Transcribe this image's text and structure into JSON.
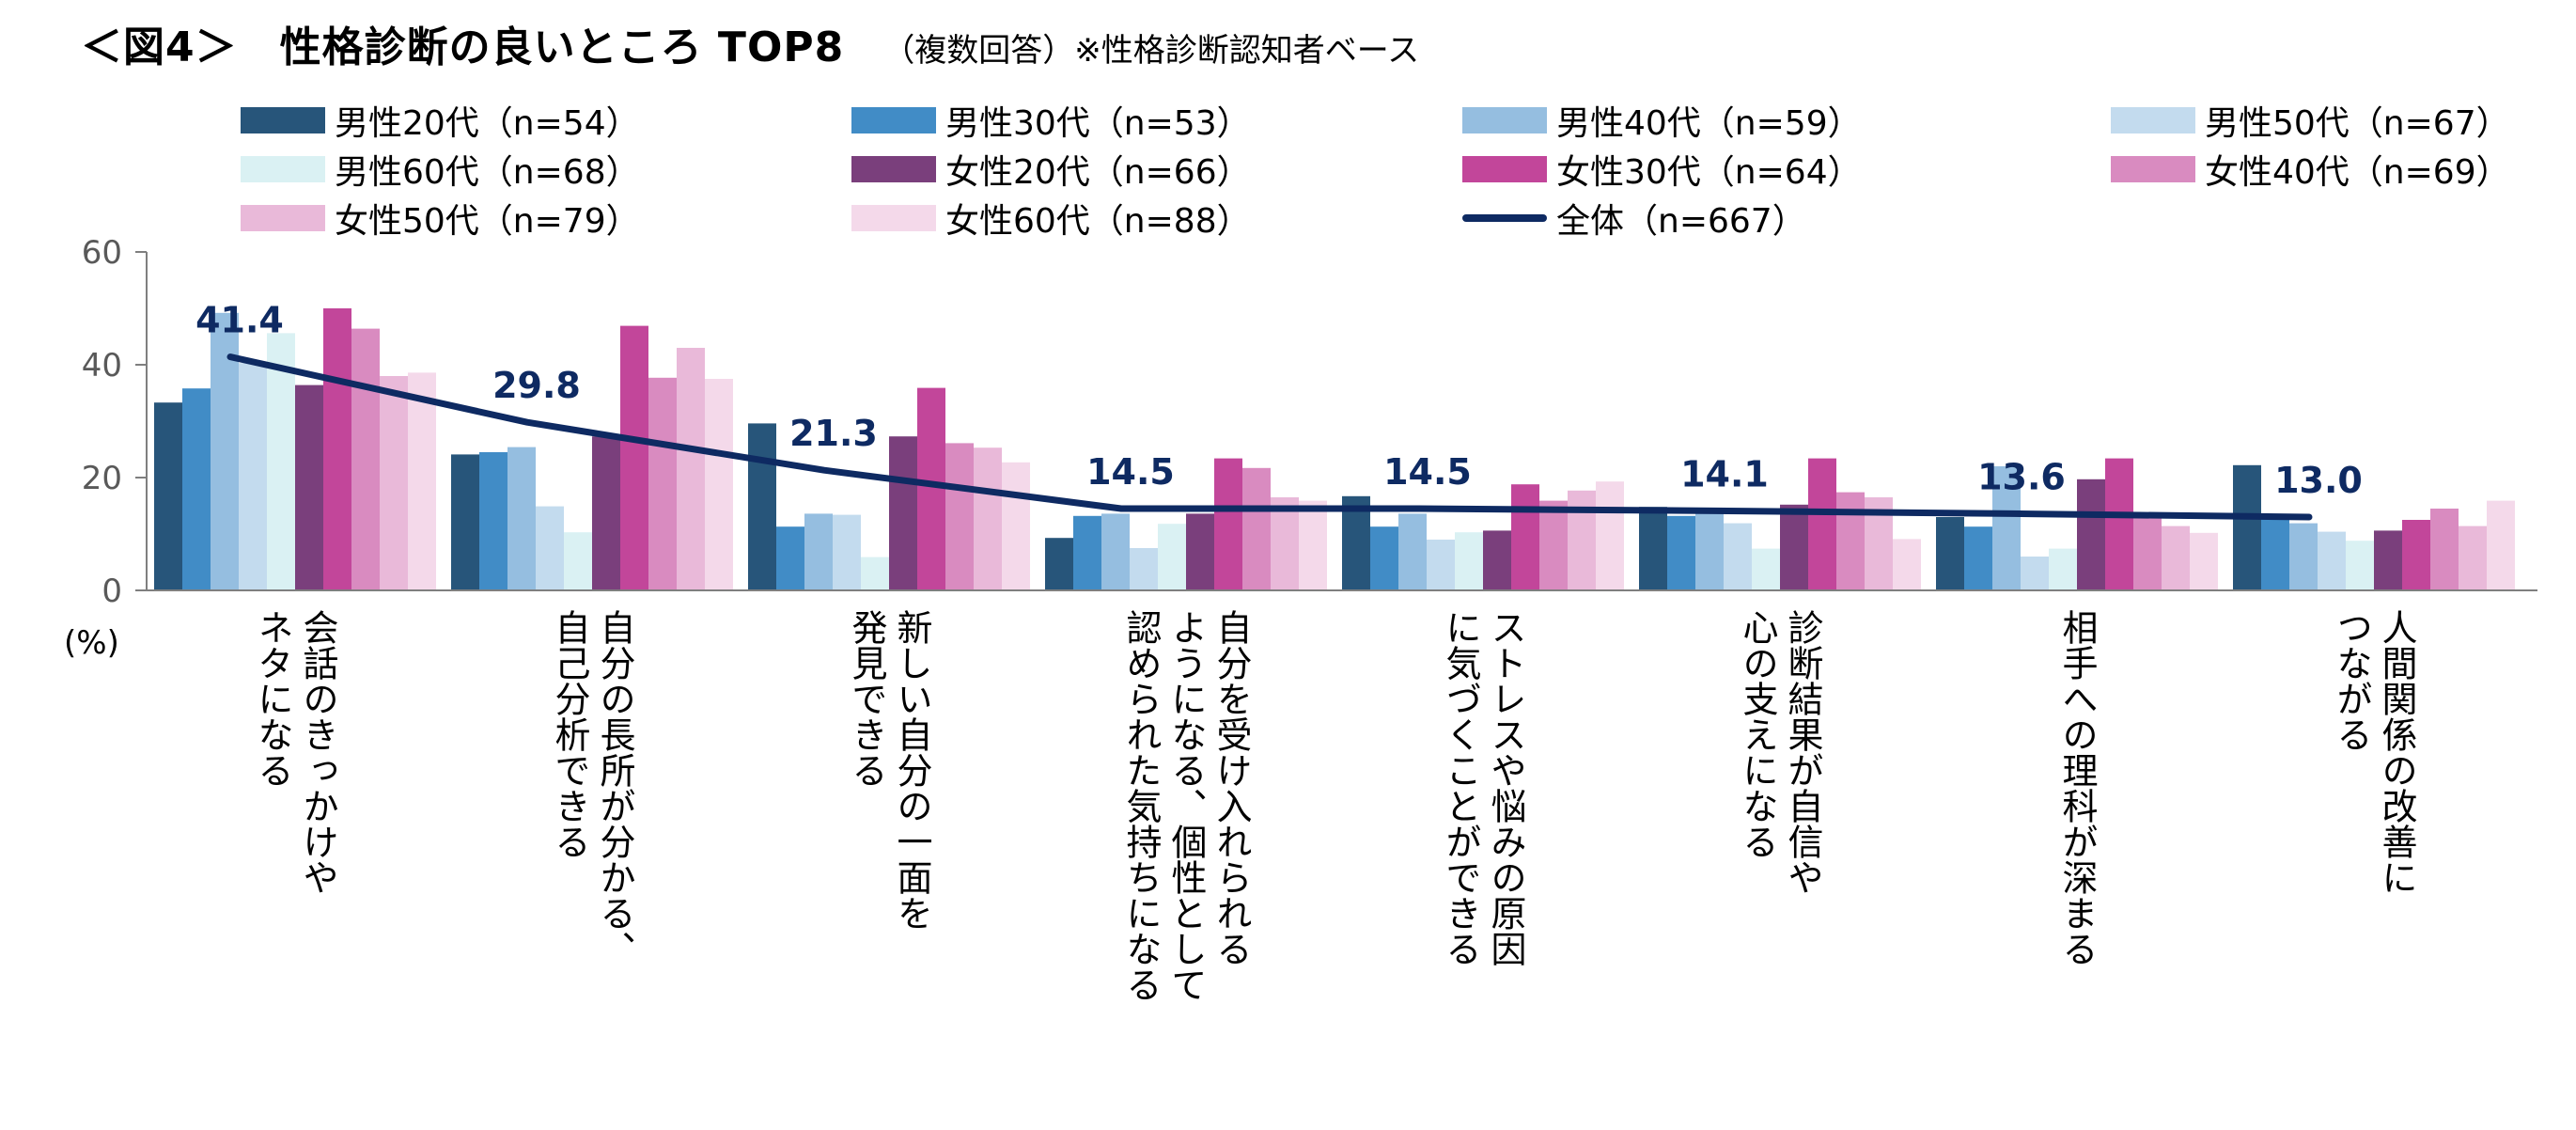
{
  "title": "＜図4＞　性格診断の良いところ TOP8",
  "subtitle": "（複数回答）※性格診断認知者ベース",
  "chart_data": {
    "type": "bar",
    "ylim": [
      0,
      60
    ],
    "yticks": [
      0,
      20,
      40,
      60
    ],
    "ylabel": "(%)",
    "grid": false,
    "legend_position": "top",
    "categories": [
      "会話のきっかけや\nネタになる",
      "自分の長所が分かる、\n自己分析できる",
      "新しい自分の一面を\n発見できる",
      "自分を受け入れられる\nようになる、個性として\n認められた気持ちになる",
      "ストレスや悩みの原因\nに気づくことができる",
      "診断結果が自信や\n心の支えになる",
      "相手への理科が深まる",
      "人間関係の改善に\nつながる"
    ],
    "series": [
      {
        "name": "男性20代（n=54）",
        "color": "#27557A",
        "values": [
          33.3,
          24.1,
          29.6,
          9.3,
          16.7,
          14.8,
          13.0,
          22.2
        ]
      },
      {
        "name": "男性30代（n=53）",
        "color": "#418CC6",
        "values": [
          35.8,
          24.5,
          11.3,
          13.2,
          11.3,
          13.2,
          11.3,
          13.2
        ]
      },
      {
        "name": "男性40代（n=59）",
        "color": "#95BEE0",
        "values": [
          49.2,
          25.4,
          13.6,
          13.6,
          13.6,
          13.6,
          22.0,
          11.9
        ]
      },
      {
        "name": "男性50代（n=67）",
        "color": "#C3DBEE",
        "values": [
          40.3,
          14.9,
          13.4,
          7.5,
          9.0,
          11.9,
          6.0,
          10.4
        ]
      },
      {
        "name": "男性60代（n=68）",
        "color": "#DAF1F3",
        "values": [
          45.6,
          10.3,
          5.9,
          11.8,
          10.3,
          7.4,
          7.4,
          8.8
        ]
      },
      {
        "name": "女性20代（n=66）",
        "color": "#7A3F7C",
        "values": [
          36.4,
          27.3,
          27.3,
          13.6,
          10.6,
          15.2,
          19.7,
          10.6
        ]
      },
      {
        "name": "女性30代（n=64）",
        "color": "#C2469A",
        "values": [
          50.0,
          46.9,
          35.9,
          23.4,
          18.8,
          23.4,
          23.4,
          12.5
        ]
      },
      {
        "name": "女性40代（n=69）",
        "color": "#D98BC0",
        "values": [
          46.4,
          37.7,
          26.1,
          21.7,
          15.9,
          17.4,
          13.0,
          14.5
        ]
      },
      {
        "name": "女性50代（n=79）",
        "color": "#E9B9D9",
        "values": [
          38.0,
          43.0,
          25.3,
          16.5,
          17.7,
          16.5,
          11.4,
          11.4
        ]
      },
      {
        "name": "女性60代（n=88）",
        "color": "#F4D9EA",
        "values": [
          38.6,
          37.5,
          22.7,
          15.9,
          19.3,
          9.1,
          10.2,
          15.9
        ]
      }
    ],
    "total": {
      "name": "全体（n=667）",
      "color": "#0E2A62",
      "values": [
        41.4,
        29.8,
        21.3,
        14.5,
        14.5,
        14.1,
        13.6,
        13.0
      ],
      "labels": [
        "41.4",
        "29.8",
        "21.3",
        "14.5",
        "14.5",
        "14.1",
        "13.6",
        "13.0"
      ]
    }
  }
}
